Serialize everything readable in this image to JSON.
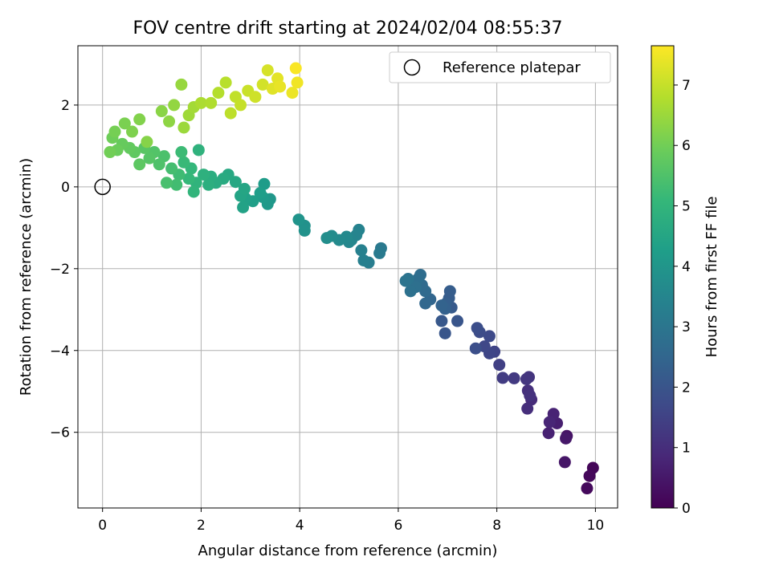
{
  "chart_data": {
    "type": "scatter",
    "title": "FOV centre drift starting at 2024/02/04 08:55:37",
    "xlabel": "Angular distance from reference (arcmin)",
    "ylabel": "Rotation from reference (arcmin)",
    "xlim": [
      -0.5,
      10.45
    ],
    "ylim": [
      -7.85,
      3.45
    ],
    "xticks": [
      0,
      2,
      4,
      6,
      8,
      10
    ],
    "xtick_labels": [
      "0",
      "2",
      "4",
      "6",
      "8",
      "10"
    ],
    "yticks": [
      -6,
      -4,
      -2,
      0,
      2
    ],
    "ytick_labels": [
      "−6",
      "−4",
      "−2",
      "0",
      "2"
    ],
    "grid": true,
    "legend": {
      "position": "top-right",
      "label": "Reference platepar"
    },
    "reference_point": {
      "x": 0,
      "y": 0
    },
    "colormap": "viridis",
    "colorbar": {
      "label": "Hours from first FF file",
      "range": [
        0,
        7.65
      ],
      "ticks": [
        0,
        1,
        2,
        3,
        4,
        5,
        6,
        7
      ],
      "tick_labels": [
        "0",
        "1",
        "2",
        "3",
        "4",
        "5",
        "6",
        "7"
      ]
    },
    "series": [
      {
        "values": [
          {
            "x": 9.95,
            "y": -6.87,
            "t": 0.1
          },
          {
            "x": 9.88,
            "y": -7.07,
            "t": 0.15
          },
          {
            "x": 9.83,
            "y": -7.37,
            "t": 0.2
          },
          {
            "x": 9.42,
            "y": -6.09,
            "t": 0.4
          },
          {
            "x": 9.38,
            "y": -6.73,
            "t": 0.45
          },
          {
            "x": 9.4,
            "y": -6.15,
            "t": 0.5
          },
          {
            "x": 9.22,
            "y": -5.78,
            "t": 0.65
          },
          {
            "x": 9.05,
            "y": -6.02,
            "t": 0.7
          },
          {
            "x": 9.15,
            "y": -5.55,
            "t": 0.75
          },
          {
            "x": 9.07,
            "y": -5.75,
            "t": 0.8
          },
          {
            "x": 8.7,
            "y": -5.2,
            "t": 0.95
          },
          {
            "x": 8.62,
            "y": -5.42,
            "t": 1.0
          },
          {
            "x": 8.63,
            "y": -4.98,
            "t": 1.05
          },
          {
            "x": 8.67,
            "y": -5.1,
            "t": 1.1
          },
          {
            "x": 8.65,
            "y": -4.65,
            "t": 1.15
          },
          {
            "x": 8.6,
            "y": -4.7,
            "t": 1.2
          },
          {
            "x": 8.35,
            "y": -4.68,
            "t": 1.3
          },
          {
            "x": 8.12,
            "y": -4.67,
            "t": 1.35
          },
          {
            "x": 8.05,
            "y": -4.35,
            "t": 1.45
          },
          {
            "x": 7.95,
            "y": -4.03,
            "t": 1.55
          },
          {
            "x": 7.85,
            "y": -4.07,
            "t": 1.6
          },
          {
            "x": 7.75,
            "y": -3.9,
            "t": 1.65
          },
          {
            "x": 7.85,
            "y": -3.65,
            "t": 1.7
          },
          {
            "x": 7.65,
            "y": -3.55,
            "t": 1.75
          },
          {
            "x": 7.6,
            "y": -3.45,
            "t": 1.8
          },
          {
            "x": 7.57,
            "y": -3.95,
            "t": 1.85
          },
          {
            "x": 7.2,
            "y": -3.28,
            "t": 2.0
          },
          {
            "x": 6.95,
            "y": -3.58,
            "t": 2.05
          },
          {
            "x": 6.88,
            "y": -3.28,
            "t": 2.1
          },
          {
            "x": 7.08,
            "y": -2.95,
            "t": 2.15
          },
          {
            "x": 7.03,
            "y": -2.72,
            "t": 2.2
          },
          {
            "x": 7.05,
            "y": -2.55,
            "t": 2.25
          },
          {
            "x": 6.97,
            "y": -2.85,
            "t": 2.3
          },
          {
            "x": 6.95,
            "y": -2.98,
            "t": 2.35
          },
          {
            "x": 6.88,
            "y": -2.9,
            "t": 2.4
          },
          {
            "x": 6.65,
            "y": -2.75,
            "t": 2.5
          },
          {
            "x": 6.55,
            "y": -2.85,
            "t": 2.55
          },
          {
            "x": 6.55,
            "y": -2.55,
            "t": 2.6
          },
          {
            "x": 6.48,
            "y": -2.4,
            "t": 2.65
          },
          {
            "x": 6.45,
            "y": -2.15,
            "t": 2.7
          },
          {
            "x": 6.4,
            "y": -2.25,
            "t": 2.75
          },
          {
            "x": 6.35,
            "y": -2.45,
            "t": 2.8
          },
          {
            "x": 6.25,
            "y": -2.55,
            "t": 2.85
          },
          {
            "x": 6.2,
            "y": -2.25,
            "t": 2.9
          },
          {
            "x": 6.15,
            "y": -2.3,
            "t": 2.95
          },
          {
            "x": 5.65,
            "y": -1.5,
            "t": 3.1
          },
          {
            "x": 5.62,
            "y": -1.62,
            "t": 3.15
          },
          {
            "x": 5.4,
            "y": -1.85,
            "t": 3.25
          },
          {
            "x": 5.3,
            "y": -1.8,
            "t": 3.3
          },
          {
            "x": 5.25,
            "y": -1.55,
            "t": 3.35
          },
          {
            "x": 5.2,
            "y": -1.05,
            "t": 3.4
          },
          {
            "x": 5.15,
            "y": -1.18,
            "t": 3.45
          },
          {
            "x": 5.05,
            "y": -1.3,
            "t": 3.5
          },
          {
            "x": 5.0,
            "y": -1.35,
            "t": 3.55
          },
          {
            "x": 4.95,
            "y": -1.22,
            "t": 3.6
          },
          {
            "x": 4.8,
            "y": -1.3,
            "t": 3.65
          },
          {
            "x": 4.65,
            "y": -1.2,
            "t": 3.7
          },
          {
            "x": 4.55,
            "y": -1.25,
            "t": 3.75
          },
          {
            "x": 4.1,
            "y": -0.95,
            "t": 3.85
          },
          {
            "x": 4.1,
            "y": -1.07,
            "t": 3.9
          },
          {
            "x": 3.98,
            "y": -0.8,
            "t": 3.95
          },
          {
            "x": 3.4,
            "y": -0.3,
            "t": 4.05
          },
          {
            "x": 3.35,
            "y": -0.42,
            "t": 4.1
          },
          {
            "x": 3.25,
            "y": -0.25,
            "t": 4.15
          },
          {
            "x": 3.28,
            "y": 0.07,
            "t": 4.2
          },
          {
            "x": 3.2,
            "y": -0.15,
            "t": 4.25
          },
          {
            "x": 3.05,
            "y": -0.35,
            "t": 4.3
          },
          {
            "x": 2.9,
            "y": -0.28,
            "t": 4.35
          },
          {
            "x": 2.85,
            "y": -0.5,
            "t": 4.4
          },
          {
            "x": 2.8,
            "y": -0.22,
            "t": 4.45
          },
          {
            "x": 2.88,
            "y": -0.05,
            "t": 4.5
          },
          {
            "x": 2.7,
            "y": 0.12,
            "t": 4.55
          },
          {
            "x": 2.55,
            "y": 0.3,
            "t": 4.6
          },
          {
            "x": 2.45,
            "y": 0.2,
            "t": 4.65
          },
          {
            "x": 2.3,
            "y": 0.1,
            "t": 4.7
          },
          {
            "x": 2.2,
            "y": 0.25,
            "t": 4.75
          },
          {
            "x": 2.15,
            "y": 0.05,
            "t": 4.8
          },
          {
            "x": 2.05,
            "y": 0.3,
            "t": 4.85
          },
          {
            "x": 1.95,
            "y": 0.9,
            "t": 4.9
          },
          {
            "x": 1.9,
            "y": 0.1,
            "t": 4.95
          },
          {
            "x": 1.85,
            "y": -0.12,
            "t": 5.0
          },
          {
            "x": 1.8,
            "y": 0.45,
            "t": 5.05
          },
          {
            "x": 1.75,
            "y": 0.2,
            "t": 5.1
          },
          {
            "x": 1.65,
            "y": 0.6,
            "t": 5.15
          },
          {
            "x": 1.6,
            "y": 0.85,
            "t": 5.2
          },
          {
            "x": 1.55,
            "y": 0.3,
            "t": 5.25
          },
          {
            "x": 1.5,
            "y": 0.05,
            "t": 5.3
          },
          {
            "x": 1.4,
            "y": 0.45,
            "t": 5.35
          },
          {
            "x": 1.3,
            "y": 0.1,
            "t": 5.4
          },
          {
            "x": 1.25,
            "y": 0.75,
            "t": 5.45
          },
          {
            "x": 1.15,
            "y": 0.55,
            "t": 5.5
          },
          {
            "x": 1.05,
            "y": 0.85,
            "t": 5.55
          },
          {
            "x": 0.95,
            "y": 0.7,
            "t": 5.6
          },
          {
            "x": 0.85,
            "y": 0.95,
            "t": 5.65
          },
          {
            "x": 0.75,
            "y": 0.55,
            "t": 5.7
          },
          {
            "x": 0.65,
            "y": 0.85,
            "t": 5.75
          },
          {
            "x": 0.55,
            "y": 0.95,
            "t": 5.8
          },
          {
            "x": 0.4,
            "y": 1.05,
            "t": 5.85
          },
          {
            "x": 0.3,
            "y": 0.9,
            "t": 5.9
          },
          {
            "x": 0.2,
            "y": 1.2,
            "t": 5.95
          },
          {
            "x": 0.15,
            "y": 0.85,
            "t": 6.0
          },
          {
            "x": 0.25,
            "y": 1.35,
            "t": 6.05
          },
          {
            "x": 0.45,
            "y": 1.55,
            "t": 6.1
          },
          {
            "x": 0.6,
            "y": 1.35,
            "t": 6.15
          },
          {
            "x": 0.75,
            "y": 1.65,
            "t": 6.2
          },
          {
            "x": 0.9,
            "y": 1.1,
            "t": 6.25
          },
          {
            "x": 1.2,
            "y": 1.85,
            "t": 6.3
          },
          {
            "x": 1.35,
            "y": 1.6,
            "t": 6.35
          },
          {
            "x": 1.45,
            "y": 2.0,
            "t": 6.4
          },
          {
            "x": 1.6,
            "y": 2.5,
            "t": 6.45
          },
          {
            "x": 1.65,
            "y": 1.45,
            "t": 6.5
          },
          {
            "x": 1.75,
            "y": 1.75,
            "t": 6.55
          },
          {
            "x": 1.85,
            "y": 1.95,
            "t": 6.6
          },
          {
            "x": 2.0,
            "y": 2.05,
            "t": 6.7
          },
          {
            "x": 2.2,
            "y": 2.05,
            "t": 6.75
          },
          {
            "x": 2.35,
            "y": 2.3,
            "t": 6.8
          },
          {
            "x": 2.5,
            "y": 2.55,
            "t": 6.85
          },
          {
            "x": 2.6,
            "y": 1.8,
            "t": 6.9
          },
          {
            "x": 2.7,
            "y": 2.2,
            "t": 6.95
          },
          {
            "x": 2.8,
            "y": 2.0,
            "t": 7.0
          },
          {
            "x": 2.95,
            "y": 2.35,
            "t": 7.05
          },
          {
            "x": 3.1,
            "y": 2.2,
            "t": 7.1
          },
          {
            "x": 3.25,
            "y": 2.5,
            "t": 7.15
          },
          {
            "x": 3.35,
            "y": 2.85,
            "t": 7.2
          },
          {
            "x": 3.45,
            "y": 2.4,
            "t": 7.3
          },
          {
            "x": 3.55,
            "y": 2.65,
            "t": 7.35
          },
          {
            "x": 3.6,
            "y": 2.45,
            "t": 7.4
          },
          {
            "x": 3.85,
            "y": 2.3,
            "t": 7.45
          },
          {
            "x": 3.95,
            "y": 2.55,
            "t": 7.5
          },
          {
            "x": 3.92,
            "y": 2.9,
            "t": 7.6
          }
        ]
      }
    ]
  }
}
